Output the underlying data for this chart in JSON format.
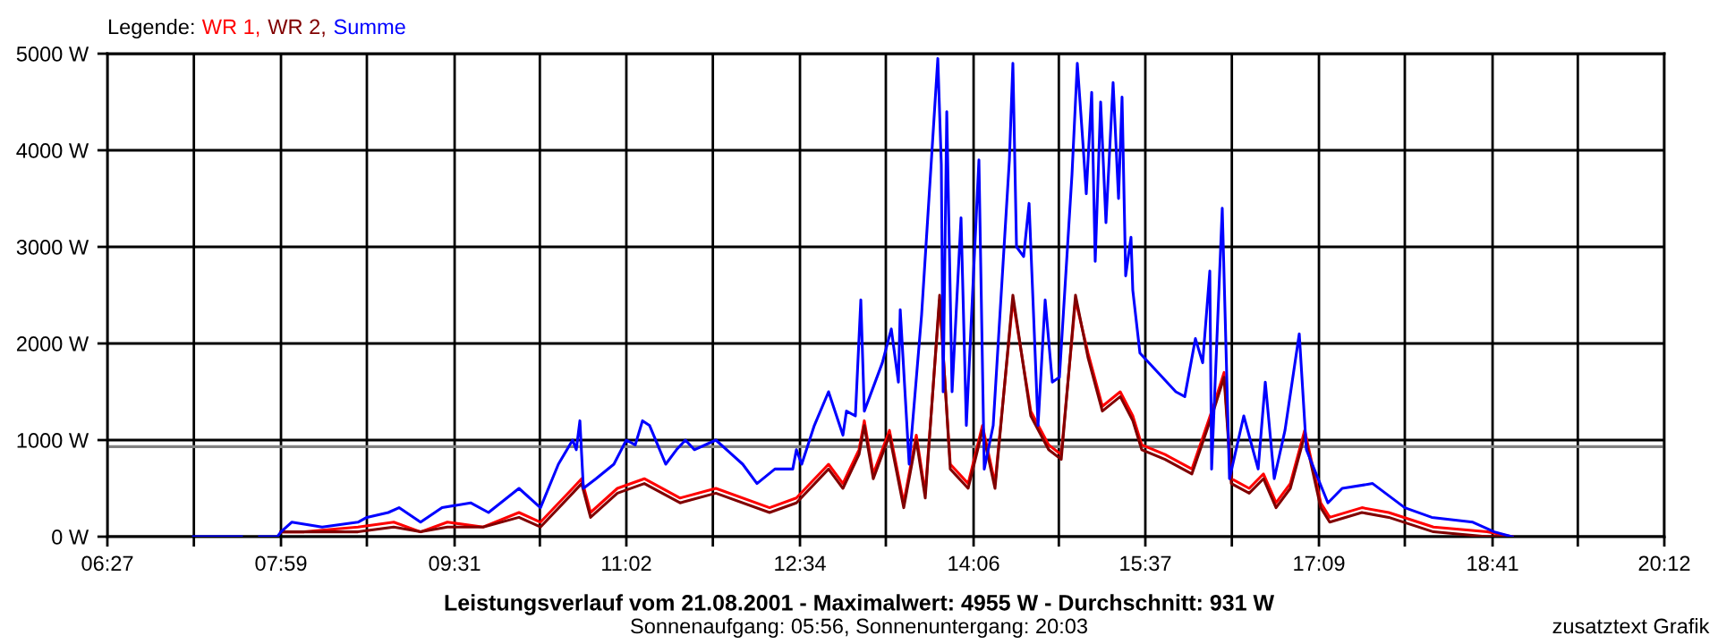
{
  "chart_data": {
    "type": "line",
    "title": "Leistungsverlauf vom 21.08.2001 - Maximalwert: 4955 W - Durchschnitt: 931 W",
    "subtitle": "Sonnenaufgang: 05:56, Sonnenuntergang: 20:03",
    "legend_title": "Legende:",
    "legend": "top left",
    "annotations": [
      "zusatztext Grafik"
    ],
    "grid": true,
    "line_style": "solid",
    "marker": "none",
    "xlim": [
      6.45,
      20.2
    ],
    "ylim": [
      0,
      5000
    ],
    "xticks": [
      {
        "value": 6.45,
        "label": "06:27"
      },
      {
        "value": 7.2139,
        "label": null
      },
      {
        "value": 7.9833,
        "label": "07:59"
      },
      {
        "value": 8.7417,
        "label": null
      },
      {
        "value": 9.5167,
        "label": "09:31"
      },
      {
        "value": 10.2694,
        "label": null
      },
      {
        "value": 11.0333,
        "label": "11:02"
      },
      {
        "value": 11.7972,
        "label": null
      },
      {
        "value": 12.5667,
        "label": "12:34"
      },
      {
        "value": 13.325,
        "label": null
      },
      {
        "value": 14.1,
        "label": "14:06"
      },
      {
        "value": 14.8528,
        "label": null
      },
      {
        "value": 15.6167,
        "label": "15:37"
      },
      {
        "value": 16.3806,
        "label": null
      },
      {
        "value": 17.15,
        "label": "17:09"
      },
      {
        "value": 17.9083,
        "label": null
      },
      {
        "value": 18.6833,
        "label": "18:41"
      },
      {
        "value": 19.4361,
        "label": null
      },
      {
        "value": 20.2,
        "label": "20:12"
      }
    ],
    "yticks": [
      {
        "value": 0,
        "label": "0 W"
      },
      {
        "value": 1000,
        "label": "1000 W"
      },
      {
        "value": 2000,
        "label": "2000 W"
      },
      {
        "value": 3000,
        "label": "3000 W"
      },
      {
        "value": 4000,
        "label": "4000 W"
      },
      {
        "value": 5000,
        "label": "5000 W"
      }
    ],
    "ref_lines": [
      {
        "axis": "y",
        "value": 931,
        "label": null,
        "color": "#808080"
      }
    ],
    "series": [
      {
        "name": "WR 1,",
        "color": "#ff0000",
        "x": [
          7.983,
          8.188,
          8.663,
          8.979,
          9.216,
          9.453,
          9.769,
          10.085,
          10.275,
          10.559,
          10.638,
          10.717,
          10.954,
          11.192,
          11.508,
          11.824,
          12.298,
          12.535,
          12.819,
          12.946,
          13.088,
          13.135,
          13.214,
          13.357,
          13.483,
          13.594,
          13.673,
          13.8,
          13.894,
          14.052,
          14.178,
          14.289,
          14.447,
          14.605,
          14.763,
          14.874,
          15.0,
          15.111,
          15.237,
          15.395,
          15.506,
          15.585,
          15.791,
          16.028,
          16.218,
          16.312,
          16.376,
          16.534,
          16.66,
          16.771,
          16.897,
          17.024,
          17.166,
          17.245,
          17.529,
          17.766,
          18.161,
          18.635,
          18.857
        ],
        "values": [
          50,
          50,
          100,
          150,
          50,
          150,
          100,
          250,
          150,
          500,
          600,
          250,
          500,
          600,
          400,
          500,
          300,
          400,
          750,
          550,
          900,
          1200,
          650,
          1100,
          350,
          1050,
          450,
          2450,
          750,
          550,
          1150,
          550,
          2450,
          1300,
          950,
          850,
          2450,
          1900,
          1350,
          1500,
          1250,
          950,
          850,
          700,
          1350,
          1700,
          600,
          500,
          650,
          350,
          550,
          1100,
          350,
          200,
          300,
          250,
          100,
          50,
          0
        ]
      },
      {
        "name": "WR 2,",
        "color": "#800000",
        "x": [
          7.983,
          8.188,
          8.663,
          8.979,
          9.216,
          9.453,
          9.769,
          10.085,
          10.275,
          10.559,
          10.638,
          10.717,
          10.954,
          11.192,
          11.508,
          11.824,
          12.298,
          12.535,
          12.819,
          12.946,
          13.088,
          13.135,
          13.214,
          13.357,
          13.483,
          13.594,
          13.673,
          13.8,
          13.894,
          14.052,
          14.178,
          14.289,
          14.447,
          14.605,
          14.763,
          14.874,
          15.0,
          15.111,
          15.237,
          15.395,
          15.506,
          15.585,
          15.791,
          16.028,
          16.218,
          16.312,
          16.376,
          16.534,
          16.66,
          16.771,
          16.897,
          17.024,
          17.166,
          17.245,
          17.529,
          17.766,
          18.161,
          18.635,
          18.857
        ],
        "values": [
          50,
          50,
          50,
          100,
          50,
          100,
          100,
          200,
          100,
          450,
          550,
          200,
          450,
          550,
          350,
          450,
          250,
          350,
          700,
          500,
          850,
          1150,
          600,
          1050,
          300,
          1000,
          400,
          2500,
          700,
          500,
          1100,
          500,
          2500,
          1250,
          900,
          800,
          2500,
          1850,
          1300,
          1450,
          1200,
          900,
          800,
          650,
          1300,
          1650,
          550,
          450,
          600,
          300,
          500,
          1050,
          300,
          150,
          250,
          200,
          50,
          0,
          0
        ]
      },
      {
        "name": "Summe",
        "color": "#0000ff",
        "x": [
          7.209,
          7.635,
          7.714,
          7.793,
          7.951,
          7.983,
          8.078,
          8.347,
          8.663,
          8.742,
          8.931,
          9.026,
          9.216,
          9.406,
          9.658,
          9.816,
          10.085,
          10.275,
          10.433,
          10.559,
          10.591,
          10.623,
          10.654,
          10.765,
          10.923,
          11.033,
          11.112,
          11.176,
          11.239,
          11.381,
          11.476,
          11.555,
          11.634,
          11.824,
          12.061,
          12.187,
          12.345,
          12.503,
          12.535,
          12.582,
          12.693,
          12.819,
          12.946,
          12.977,
          13.056,
          13.104,
          13.135,
          13.294,
          13.373,
          13.436,
          13.452,
          13.531,
          13.641,
          13.784,
          13.815,
          13.831,
          13.863,
          13.91,
          13.989,
          14.036,
          14.147,
          14.194,
          14.273,
          14.416,
          14.447,
          14.479,
          14.542,
          14.59,
          14.669,
          14.732,
          14.795,
          14.858,
          14.969,
          15.016,
          15.064,
          15.095,
          15.143,
          15.174,
          15.222,
          15.269,
          15.332,
          15.38,
          15.411,
          15.443,
          15.49,
          15.506,
          15.569,
          15.886,
          15.965,
          16.059,
          16.123,
          16.186,
          16.202,
          16.296,
          16.36,
          16.486,
          16.613,
          16.676,
          16.755,
          16.85,
          16.976,
          17.039,
          17.229,
          17.355,
          17.624,
          17.908,
          18.146,
          18.509,
          18.699,
          18.857
        ],
        "values": [
          0,
          0,
          null,
          0,
          0,
          50,
          150,
          100,
          150,
          200,
          250,
          300,
          150,
          300,
          350,
          250,
          500,
          300,
          750,
          1000,
          900,
          1200,
          500,
          600,
          750,
          1000,
          950,
          1200,
          1150,
          750,
          900,
          1000,
          900,
          1000,
          750,
          550,
          700,
          700,
          900,
          750,
          1150,
          1500,
          1050,
          1300,
          1250,
          2450,
          1300,
          1800,
          2150,
          1600,
          2350,
          750,
          2300,
          4950,
          3850,
          1500,
          4400,
          1500,
          3300,
          1150,
          3900,
          700,
          1150,
          3900,
          4900,
          3000,
          2900,
          3450,
          1150,
          2450,
          1600,
          1650,
          3750,
          4900,
          4100,
          3550,
          4600,
          2850,
          4500,
          3250,
          4700,
          3500,
          4550,
          2700,
          3100,
          2550,
          1900,
          1500,
          1450,
          2050,
          1800,
          2750,
          700,
          3400,
          600,
          1250,
          700,
          1600,
          600,
          1100,
          2100,
          900,
          350,
          500,
          550,
          300,
          200,
          150,
          50,
          0
        ]
      }
    ]
  }
}
